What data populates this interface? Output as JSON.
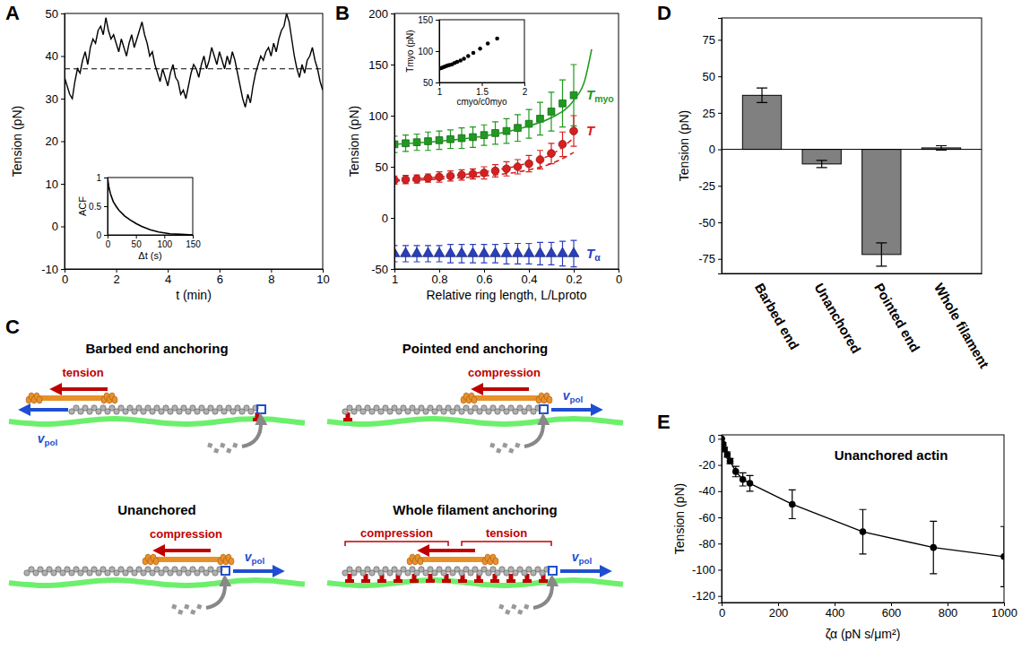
{
  "panel_letters": [
    "A",
    "B",
    "C",
    "D",
    "E"
  ],
  "chart_data": [
    {
      "type": "line",
      "xlabel": "t (min)",
      "ylabel": "Tension (pN)",
      "color": "#000000",
      "x": [
        0,
        0.1,
        0.2,
        0.3,
        0.4,
        0.5,
        0.6,
        0.7,
        0.8,
        0.9,
        1,
        1.1,
        1.2,
        1.3,
        1.4,
        1.5,
        1.6,
        1.7,
        1.8,
        1.9,
        2,
        2.1,
        2.2,
        2.3,
        2.4,
        2.5,
        2.6,
        2.7,
        2.8,
        2.9,
        3,
        3.1,
        3.2,
        3.3,
        3.4,
        3.5,
        3.6,
        3.7,
        3.8,
        3.9,
        4,
        4.1,
        4.2,
        4.3,
        4.4,
        4.5,
        4.6,
        4.7,
        4.8,
        4.9,
        5,
        5.1,
        5.2,
        5.3,
        5.4,
        5.5,
        5.6,
        5.7,
        5.8,
        5.9,
        6,
        6.1,
        6.2,
        6.3,
        6.4,
        6.5,
        6.6,
        6.7,
        6.8,
        6.9,
        7,
        7.1,
        7.2,
        7.3,
        7.4,
        7.5,
        7.6,
        7.7,
        7.8,
        7.9,
        8,
        8.1,
        8.2,
        8.3,
        8.4,
        8.5,
        8.6,
        8.7,
        8.8,
        8.9,
        9,
        9.1,
        9.2,
        9.3,
        9.4,
        9.5,
        9.6,
        9.7,
        9.8,
        9.9,
        10
      ],
      "values": [
        35,
        33,
        31,
        30,
        34,
        37,
        36,
        39,
        41,
        38,
        42,
        44,
        43,
        46,
        47,
        45,
        49,
        46,
        44,
        45,
        43,
        41,
        44,
        42,
        40,
        43,
        45,
        42,
        44,
        46,
        48,
        45,
        43,
        40,
        41,
        38,
        36,
        34,
        37,
        35,
        33,
        36,
        38,
        35,
        34,
        31,
        32,
        30,
        33,
        36,
        38,
        37,
        35,
        38,
        40,
        37,
        39,
        42,
        40,
        38,
        41,
        39,
        37,
        40,
        38,
        41,
        39,
        36,
        33,
        30,
        28,
        31,
        29,
        33,
        36,
        38,
        40,
        39,
        41,
        42,
        40,
        43,
        41,
        44,
        46,
        47,
        50,
        48,
        44,
        40,
        37,
        35,
        38,
        36,
        39,
        40,
        42,
        39,
        37,
        34,
        32
      ],
      "mean": 37,
      "xlim": [
        0,
        10
      ],
      "xticks": [
        0,
        2,
        4,
        6,
        8,
        10
      ],
      "ylim": [
        -10,
        50
      ],
      "yticks": [
        -10,
        0,
        10,
        20,
        30,
        40,
        50
      ],
      "inset": {
        "type": "line",
        "xlabel": "Δt (s)",
        "ylabel": "ACF",
        "color": "#000000",
        "x": [
          0,
          2,
          5,
          10,
          15,
          20,
          30,
          40,
          50,
          60,
          75,
          90,
          110,
          130,
          150
        ],
        "values": [
          1,
          0.85,
          0.72,
          0.58,
          0.5,
          0.43,
          0.33,
          0.26,
          0.2,
          0.15,
          0.09,
          0.05,
          0.02,
          0.01,
          0
        ],
        "xlim": [
          0,
          150
        ],
        "xticks": [
          0,
          50,
          100,
          150
        ],
        "ylim": [
          0,
          1
        ],
        "yticks": [
          0,
          0.5,
          1
        ]
      }
    },
    {
      "type": "line",
      "xlabel": "Relative ring length, L/Lproto",
      "ylabel": "Tension (pN)",
      "xlim": [
        1,
        0
      ],
      "xticks": [
        1,
        0.8,
        0.6,
        0.4,
        0.2,
        0
      ],
      "ylim": [
        -50,
        200
      ],
      "yticks": [
        -50,
        0,
        50,
        100,
        150,
        200
      ],
      "series": [
        {
          "name": "Tmyo",
          "color": "#1f9a1f",
          "marker": "square",
          "line_style": "none",
          "x": [
            1,
            0.95,
            0.9,
            0.85,
            0.8,
            0.75,
            0.7,
            0.65,
            0.6,
            0.55,
            0.5,
            0.45,
            0.4,
            0.35,
            0.3,
            0.25,
            0.2
          ],
          "values": [
            72,
            73,
            74,
            75,
            76,
            77,
            78,
            79,
            81,
            83,
            85,
            88,
            92,
            97,
            104,
            112,
            120
          ],
          "errors": [
            8,
            8,
            8,
            9,
            9,
            9,
            10,
            10,
            10,
            11,
            12,
            13,
            14,
            16,
            19,
            23,
            30
          ]
        },
        {
          "name": "T",
          "color": "#d62020",
          "marker": "circle",
          "line_style": "none",
          "x": [
            1,
            0.95,
            0.9,
            0.85,
            0.8,
            0.75,
            0.7,
            0.65,
            0.6,
            0.55,
            0.5,
            0.45,
            0.4,
            0.35,
            0.3,
            0.25,
            0.2
          ],
          "values": [
            37,
            37.5,
            38,
            39,
            40,
            41,
            42,
            43,
            44,
            46,
            48,
            50,
            53,
            57,
            63,
            72,
            85
          ],
          "errors": [
            4,
            4,
            4,
            4,
            5,
            5,
            5,
            5,
            6,
            6,
            7,
            7,
            8,
            9,
            10,
            12,
            15
          ]
        },
        {
          "name": "Tα",
          "color": "#2a3fbf",
          "marker": "triangle",
          "line_style": "none",
          "x": [
            1,
            0.95,
            0.9,
            0.85,
            0.8,
            0.75,
            0.7,
            0.65,
            0.6,
            0.55,
            0.5,
            0.45,
            0.4,
            0.35,
            0.3,
            0.25,
            0.2
          ],
          "values": [
            -35,
            -35,
            -35,
            -35,
            -35,
            -35,
            -35,
            -35,
            -35,
            -35,
            -35,
            -35,
            -35,
            -35,
            -35,
            -35,
            -35
          ],
          "errors": [
            8,
            8,
            8,
            8,
            8,
            9,
            9,
            9,
            9,
            9,
            10,
            10,
            10,
            11,
            11,
            12,
            13
          ]
        },
        {
          "color": "#1f9a1f",
          "marker": "none",
          "line_style": "solid",
          "x": [
            1,
            0.8,
            0.6,
            0.4,
            0.3,
            0.2,
            0.15,
            0.12
          ],
          "values": [
            72,
            75,
            80,
            90,
            98,
            115,
            135,
            165
          ]
        },
        {
          "color": "#d62020",
          "marker": "none",
          "line_style": "dashed",
          "x": [
            1,
            0.8,
            0.6,
            0.4,
            0.3,
            0.2
          ],
          "values": [
            37,
            40,
            45,
            54,
            62,
            78
          ]
        },
        {
          "color": "#d62020",
          "marker": "none",
          "line_style": "dashed",
          "x": [
            1,
            0.8,
            0.6,
            0.4,
            0.3,
            0.2
          ],
          "values": [
            36,
            38,
            41,
            47,
            53,
            64
          ]
        }
      ],
      "inset": {
        "type": "scatter",
        "xlabel": "cmyo/c0myo",
        "ylabel": "Tmyo (pN)",
        "color": "#000000",
        "marker": "circle",
        "x": [
          1,
          1.02,
          1.04,
          1.06,
          1.08,
          1.1,
          1.12,
          1.15,
          1.18,
          1.21,
          1.25,
          1.29,
          1.34,
          1.4,
          1.48,
          1.57,
          1.68
        ],
        "values": [
          72,
          73,
          74,
          75,
          76,
          77,
          78,
          79,
          81,
          83,
          85,
          88,
          92,
          97,
          104,
          112,
          120
        ],
        "xlim": [
          1,
          2
        ],
        "xticks": [
          1,
          1.5,
          2
        ],
        "ylim": [
          50,
          150
        ],
        "yticks": [
          50,
          100,
          150
        ]
      }
    },
    {
      "type": "bar",
      "ylabel": "Tension (pN)",
      "color": "#808080",
      "categories": [
        "Barbed end",
        "Unanchored",
        "Pointed end",
        "Whole filament"
      ],
      "values": [
        37,
        -10,
        -72,
        1
      ],
      "errors": [
        5,
        2.5,
        8,
        1.5
      ],
      "ylim": [
        -85,
        90
      ],
      "yticks": [
        -75,
        -50,
        -25,
        0,
        25,
        50,
        75
      ]
    },
    {
      "type": "line",
      "title": "Unanchored actin",
      "xlabel": "ζα (pN s/μm²)",
      "ylabel": "Tension (pN)",
      "color": "#000000",
      "marker": "circle",
      "line_style": "solid",
      "x": [
        0,
        5,
        10,
        20,
        30,
        50,
        75,
        100,
        250,
        500,
        750,
        1000
      ],
      "values": [
        0,
        -4,
        -8,
        -12,
        -17,
        -25,
        -31,
        -34,
        -50,
        -71,
        -83,
        -90
      ],
      "errors": [
        0,
        1,
        1.5,
        2,
        2,
        4,
        5,
        6,
        11,
        17,
        20,
        23
      ],
      "xlim": [
        0,
        1000
      ],
      "xticks": [
        0,
        200,
        400,
        600,
        800,
        1000
      ],
      "ylim": [
        -125,
        3
      ],
      "yticks": [
        -120,
        -100,
        -80,
        -60,
        -40,
        -20,
        0
      ]
    }
  ],
  "diagram": {
    "panels": [
      {
        "title": "Barbed end anchoring",
        "force_labels": [
          "tension"
        ],
        "velocity_label": "vpol"
      },
      {
        "title": "Pointed end anchoring",
        "force_labels": [
          "compression"
        ],
        "velocity_label": "vpol"
      },
      {
        "title": "Unanchored",
        "force_labels": [
          "compression"
        ],
        "velocity_label": "vpol"
      },
      {
        "title": "Whole filament anchoring",
        "force_labels": [
          "compression",
          "tension"
        ],
        "velocity_label": "vpol"
      }
    ]
  }
}
